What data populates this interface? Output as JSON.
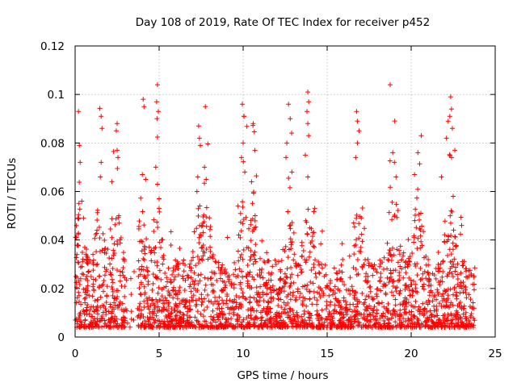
{
  "chart_data": {
    "type": "scatter",
    "title": "Day 108 of 2019, Rate Of TEC Index for receiver p452",
    "xlabel": "GPS time / hours",
    "ylabel": "ROTI / TECUs",
    "xlim": [
      0,
      25
    ],
    "ylim": [
      0,
      0.12
    ],
    "xticks": [
      0,
      5,
      10,
      15,
      20,
      25
    ],
    "yticks": [
      0,
      0.02,
      0.04,
      0.06,
      0.08,
      0.1,
      0.12
    ],
    "xtick_labels": [
      "0",
      "5",
      "10",
      "15",
      "20",
      "25"
    ],
    "ytick_labels": [
      "0",
      "0.02",
      "0.04",
      "0.06",
      "0.08",
      "0.1",
      "0.12"
    ],
    "grid": true,
    "marker": "+",
    "marker_color": "#ff0000",
    "series": [
      {
        "name": "ROTI",
        "description_points": [
          [
            0.2,
            0.093
          ],
          [
            0.25,
            0.079
          ],
          [
            0.3,
            0.072
          ],
          [
            0.4,
            0.056
          ],
          [
            0.5,
            0.049
          ],
          [
            1.55,
            0.091
          ],
          [
            1.6,
            0.086
          ],
          [
            1.55,
            0.072
          ],
          [
            1.5,
            0.066
          ],
          [
            1.3,
            0.044
          ],
          [
            2.5,
            0.088
          ],
          [
            2.45,
            0.085
          ],
          [
            2.5,
            0.077
          ],
          [
            2.55,
            0.074
          ],
          [
            2.6,
            0.05
          ],
          [
            4.05,
            0.098
          ],
          [
            4.1,
            0.095
          ],
          [
            4.0,
            0.067
          ],
          [
            4.2,
            0.065
          ],
          [
            4.9,
            0.104
          ],
          [
            4.85,
            0.097
          ],
          [
            4.95,
            0.093
          ],
          [
            4.8,
            0.07
          ],
          [
            4.9,
            0.063
          ],
          [
            5.0,
            0.057
          ],
          [
            7.35,
            0.087
          ],
          [
            7.4,
            0.082
          ],
          [
            7.45,
            0.079
          ],
          [
            7.3,
            0.066
          ],
          [
            7.25,
            0.06
          ],
          [
            7.75,
            0.095
          ],
          [
            7.8,
            0.065
          ],
          [
            7.7,
            0.07
          ],
          [
            9.95,
            0.096
          ],
          [
            10.05,
            0.091
          ],
          [
            10.0,
            0.08
          ],
          [
            9.9,
            0.074
          ],
          [
            10.1,
            0.068
          ],
          [
            10.6,
            0.088
          ],
          [
            10.7,
            0.077
          ],
          [
            10.5,
            0.064
          ],
          [
            12.7,
            0.096
          ],
          [
            12.8,
            0.09
          ],
          [
            12.6,
            0.08
          ],
          [
            12.55,
            0.074
          ],
          [
            12.9,
            0.068
          ],
          [
            13.85,
            0.101
          ],
          [
            13.9,
            0.097
          ],
          [
            13.8,
            0.093
          ],
          [
            13.85,
            0.088
          ],
          [
            13.9,
            0.083
          ],
          [
            13.7,
            0.075
          ],
          [
            16.75,
            0.093
          ],
          [
            16.8,
            0.089
          ],
          [
            16.9,
            0.085
          ],
          [
            16.8,
            0.08
          ],
          [
            16.7,
            0.074
          ],
          [
            18.75,
            0.104
          ],
          [
            18.9,
            0.076
          ],
          [
            19.0,
            0.072
          ],
          [
            19.1,
            0.066
          ],
          [
            20.6,
            0.083
          ],
          [
            20.4,
            0.076
          ],
          [
            20.2,
            0.067
          ],
          [
            22.35,
            0.099
          ],
          [
            22.4,
            0.094
          ],
          [
            22.3,
            0.091
          ],
          [
            22.2,
            0.089
          ],
          [
            22.45,
            0.086
          ],
          [
            22.1,
            0.082
          ],
          [
            22.6,
            0.077
          ],
          [
            21.8,
            0.066
          ],
          [
            22.5,
            0.058
          ]
        ]
      }
    ]
  }
}
